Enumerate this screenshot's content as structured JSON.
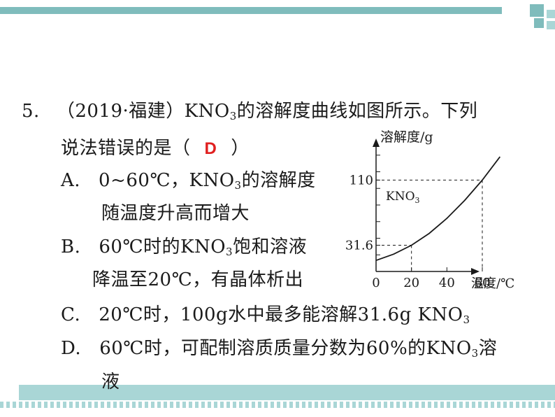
{
  "question": {
    "number": "5.",
    "source": "（2019·福建）",
    "stem_prefix": "KNO",
    "stem_sub": "3",
    "stem_suffix": "的溶解度曲线如图所示。下列",
    "stem_line2_before": "说法错误的是（",
    "answer": "D",
    "stem_line2_after": "）"
  },
  "options": {
    "A": {
      "letter": "A.",
      "text1_pre": "0~60℃，KNO",
      "text1_sub": "3",
      "text1_post": "的溶解度",
      "text2": "随温度升高而增大"
    },
    "B": {
      "letter": "B.",
      "text1_pre": "60℃时的KNO",
      "text1_sub": "3",
      "text1_post": "饱和溶液",
      "text2": "降温至20℃，有晶体析出"
    },
    "C": {
      "letter": "C.",
      "text_pre": "20℃时，100g水中最多能溶解31.6g KNO",
      "text_sub": "3"
    },
    "D": {
      "letter": "D.",
      "text_pre": "60℃时，可配制溶质质量分数为60%的KNO",
      "text_sub": "3",
      "text_post": "溶",
      "text2": "液"
    }
  },
  "chart_data": {
    "type": "line",
    "ylabel": "溶解度/g",
    "xlabel": "温度/℃",
    "x_ticks": [
      "0",
      "20",
      "40",
      "60"
    ],
    "y_ticks": [
      "31.6",
      "110"
    ],
    "series": [
      {
        "name": "KNO3",
        "label_main": "KNO",
        "label_sub": "3",
        "x": [
          0,
          10,
          20,
          30,
          40,
          50,
          60,
          70
        ],
        "y": [
          13.3,
          20.9,
          31.6,
          45.8,
          63.9,
          85.5,
          110,
          138
        ]
      }
    ],
    "xlim": [
      0,
      75
    ],
    "ylim": [
      0,
      160
    ],
    "guides": [
      {
        "x": 20,
        "y": 31.6
      },
      {
        "x": 60,
        "y": 110
      }
    ]
  }
}
